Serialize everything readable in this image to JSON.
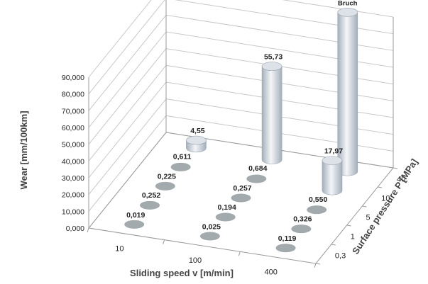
{
  "chart_data": {
    "type": "bar3d",
    "title": "",
    "xlabel": "Sliding speed v [m/min]",
    "ylabel": "Wear [mm/100km]",
    "zlabel": "Surface pressure P [MPa]",
    "x_categories": [
      "10",
      "100",
      "400"
    ],
    "z_categories": [
      "0,3",
      "1",
      "5",
      "10",
      "40"
    ],
    "y_ticks": [
      "0,000",
      "10,000",
      "20,000",
      "30,000",
      "40,000",
      "50,000",
      "60,000",
      "70,000",
      "80,000",
      "90,000"
    ],
    "ylim": [
      0,
      90
    ],
    "grid": true,
    "bars": [
      {
        "x": "10",
        "z": "0,3",
        "value": 0.019,
        "label": "0,019"
      },
      {
        "x": "100",
        "z": "0,3",
        "value": 0.025,
        "label": "0,025"
      },
      {
        "x": "400",
        "z": "0,3",
        "value": 0.119,
        "label": "0,119"
      },
      {
        "x": "10",
        "z": "1",
        "value": 0.252,
        "label": "0,252"
      },
      {
        "x": "100",
        "z": "1",
        "value": 0.194,
        "label": "0,194"
      },
      {
        "x": "400",
        "z": "1",
        "value": 0.326,
        "label": "0,326"
      },
      {
        "x": "10",
        "z": "5",
        "value": 0.225,
        "label": "0,225"
      },
      {
        "x": "100",
        "z": "5",
        "value": 0.257,
        "label": "0,257"
      },
      {
        "x": "400",
        "z": "5",
        "value": 0.55,
        "label": "0,550"
      },
      {
        "x": "10",
        "z": "10",
        "value": 0.611,
        "label": "0,611"
      },
      {
        "x": "100",
        "z": "10",
        "value": 0.684,
        "label": "0,684"
      },
      {
        "x": "400",
        "z": "10",
        "value": 17.97,
        "label": "17,97"
      },
      {
        "x": "10",
        "z": "40",
        "value": 4.55,
        "label": "4,55"
      },
      {
        "x": "100",
        "z": "40",
        "value": 55.73,
        "label": "55,73"
      },
      {
        "x": "400",
        "z": "40",
        "value": 95,
        "label": "Bruch"
      }
    ],
    "colors": {
      "flat_disc": "#a3aaae",
      "cylinder_light": "#f4f6f8",
      "cylinder_mid": "#dde2e8",
      "cylinder_dark": "#a4afbb",
      "grid": "#c8c8c8",
      "axis": "#9a9a9a",
      "text": "#222222",
      "axis_title": "#444444"
    }
  }
}
